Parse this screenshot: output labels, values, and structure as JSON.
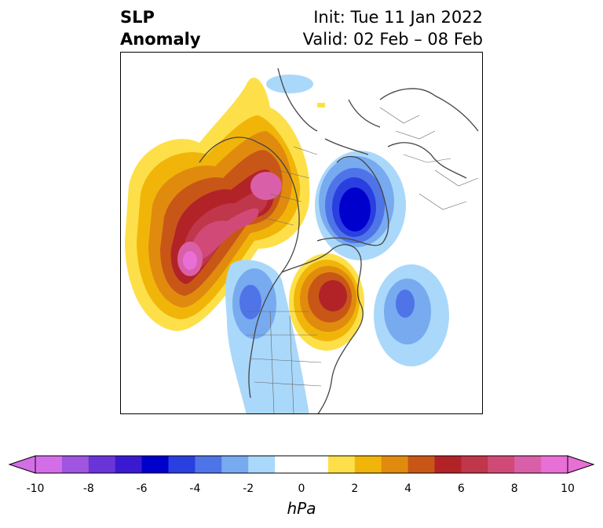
{
  "title": {
    "left_line1": "SLP",
    "left_line2": "Anomaly",
    "right_line1": "Init: Tue 11 Jan 2022",
    "right_line2": "Valid: 02 Feb – 08 Feb"
  },
  "colorbar": {
    "unit": "hPa",
    "ticks": [
      "-10",
      "-8",
      "-6",
      "-4",
      "-2",
      "0",
      "2",
      "4",
      "6",
      "8",
      "10"
    ],
    "range": [
      -10,
      10
    ],
    "extend": "both",
    "colors": [
      "#d46ee8",
      "#9f55e0",
      "#6a35d8",
      "#3a1ad0",
      "#0000cc",
      "#2a3fe0",
      "#4f74e8",
      "#78aaf0",
      "#aad8fa",
      "#ffffff",
      "#ffffff",
      "#fde049",
      "#f1b50a",
      "#e08b0e",
      "#c85717",
      "#b22328",
      "#c0364a",
      "#d14a77",
      "#d960a8",
      "#e86fd6"
    ]
  },
  "map": {
    "projection": "polar stereographic, North Pole",
    "features": [
      "coastlines",
      "country borders",
      "state/province borders"
    ],
    "anomalies": [
      {
        "region": "North Pacific / Alaska",
        "sign": "positive",
        "peak_hPa": 10
      },
      {
        "region": "Hudson Bay / Eastern Canada",
        "sign": "positive",
        "peak_hPa": 6
      },
      {
        "region": "Western North America",
        "sign": "negative",
        "peak_hPa": -5
      },
      {
        "region": "Kara Sea / Arctic Russia",
        "sign": "negative",
        "peak_hPa": -7
      },
      {
        "region": "North Atlantic",
        "sign": "negative",
        "peak_hPa": -4
      }
    ]
  }
}
